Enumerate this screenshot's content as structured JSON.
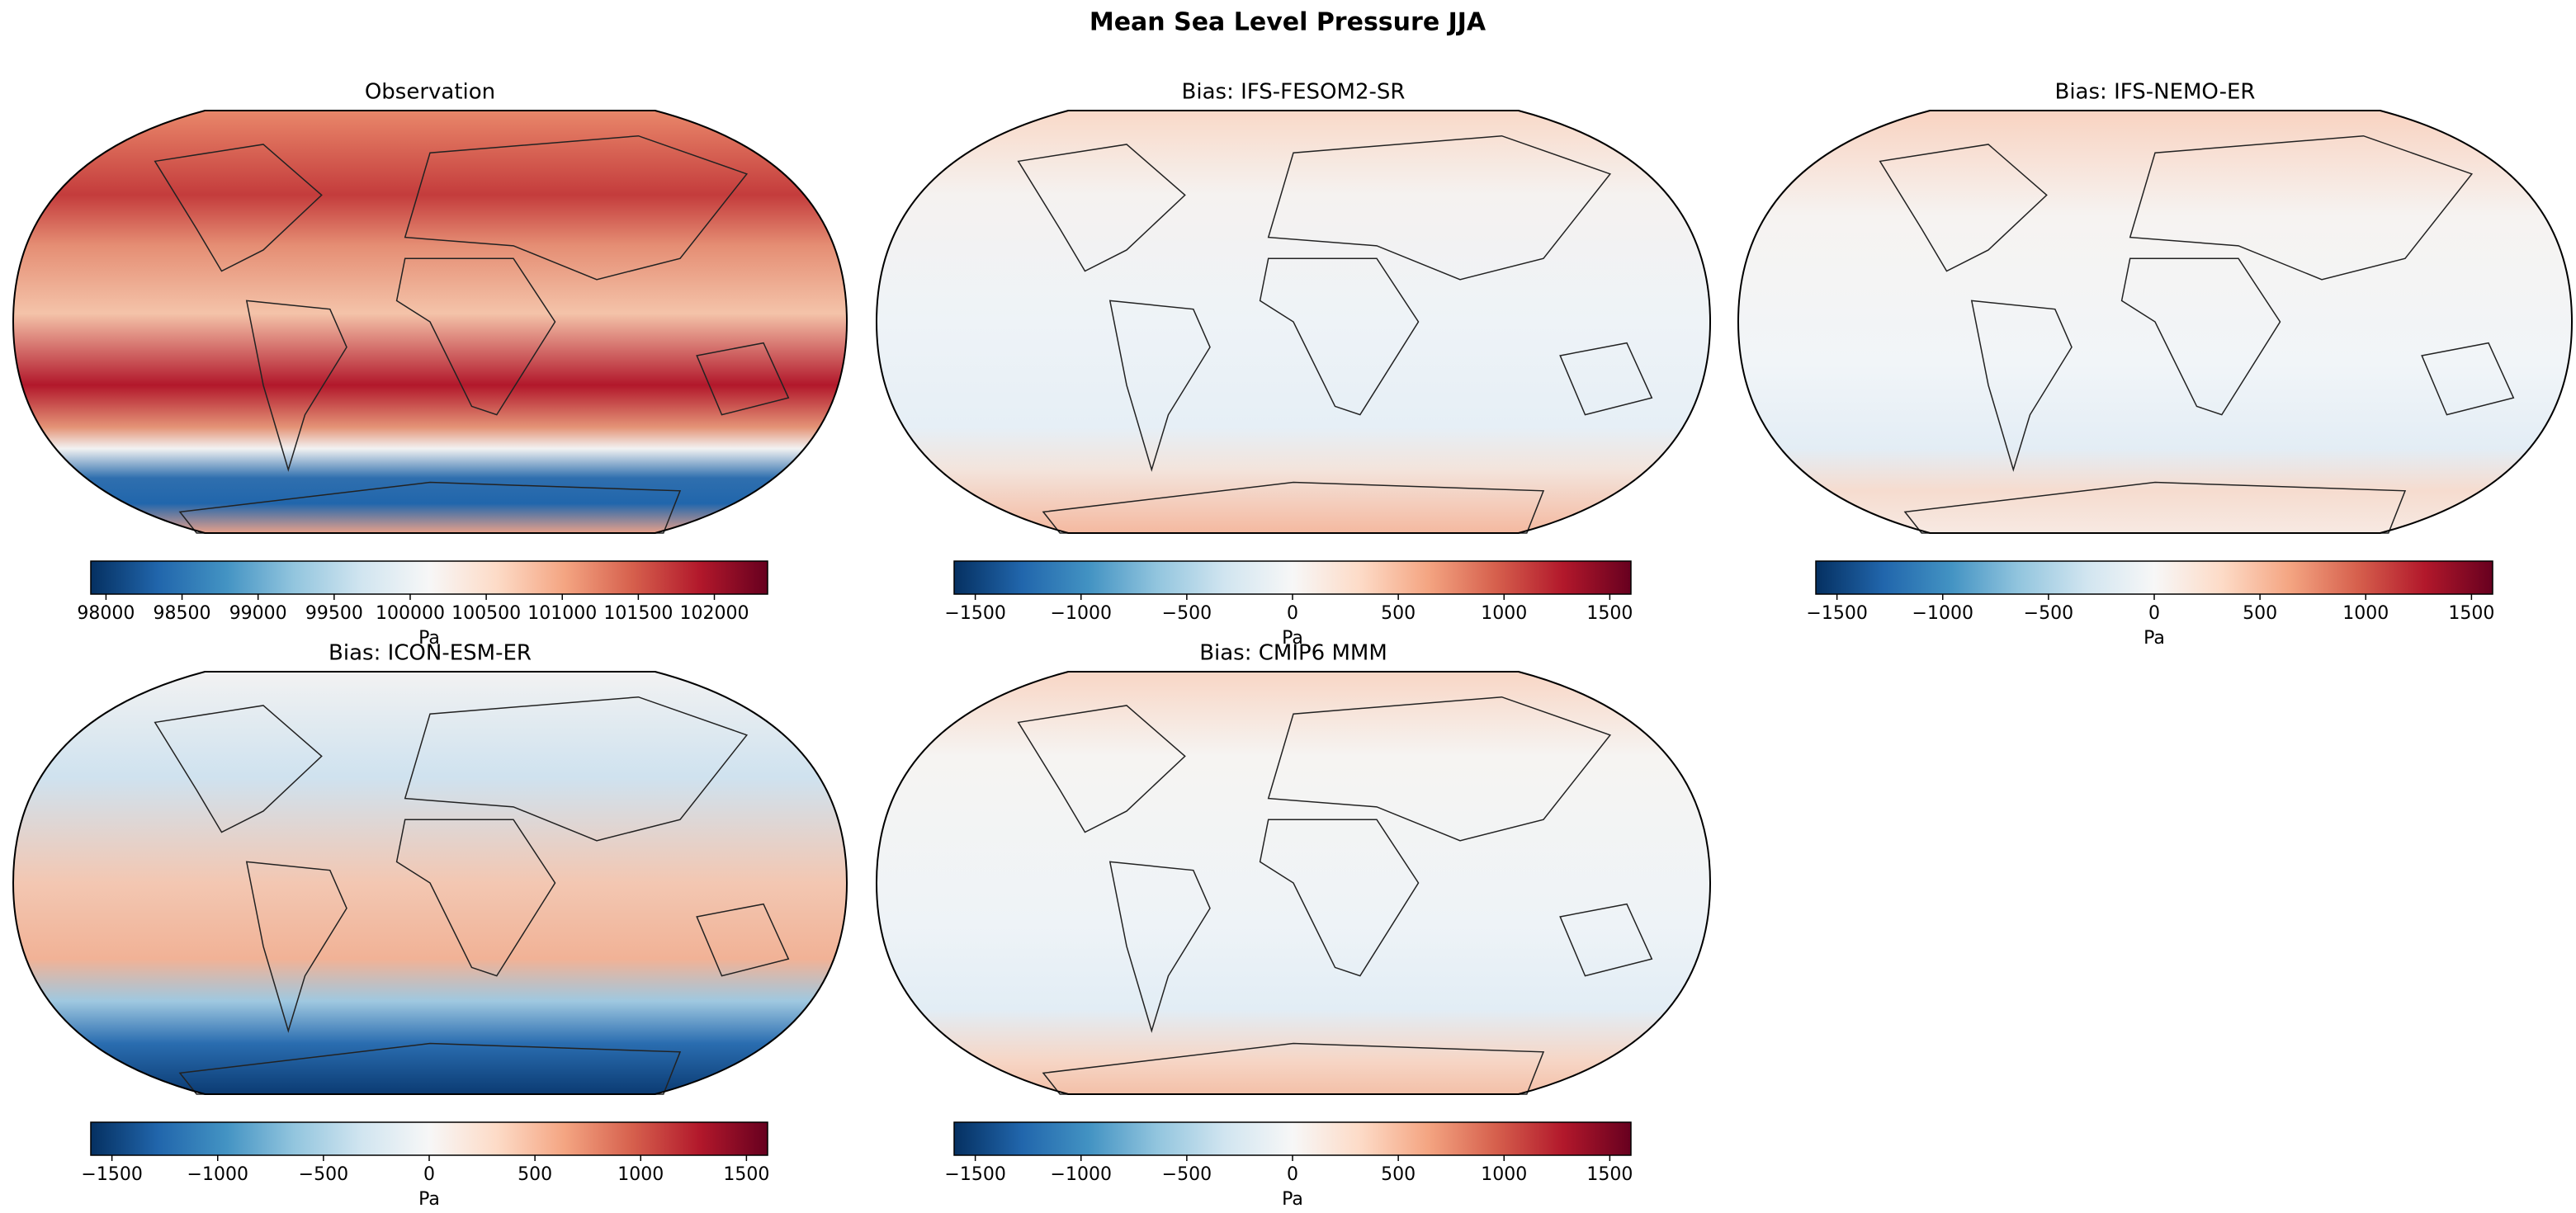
{
  "title": "Mean Sea Level Pressure JJA",
  "panels": [
    {
      "title": "Observation",
      "colorbar": {
        "lim": [
          97900,
          102350
        ],
        "ticks": [
          98000,
          98500,
          99000,
          99500,
          100000,
          100500,
          101000,
          101500,
          102000
        ],
        "label": "Pa"
      }
    },
    {
      "title": "Bias: IFS-FESOM2-SR",
      "colorbar": {
        "lim": [
          -1600,
          1600
        ],
        "ticks": [
          {
            "value": -1500,
            "label": "−1500"
          },
          {
            "value": -1000,
            "label": "−1000"
          },
          {
            "value": -500,
            "label": "−500"
          },
          0,
          500,
          1000,
          1500
        ],
        "label": "Pa"
      }
    },
    {
      "title": "Bias: IFS-NEMO-ER",
      "colorbar": {
        "lim": [
          -1600,
          1600
        ],
        "ticks": [
          {
            "value": -1500,
            "label": "−1500"
          },
          {
            "value": -1000,
            "label": "−1000"
          },
          {
            "value": -500,
            "label": "−500"
          },
          0,
          500,
          1000,
          1500
        ],
        "label": "Pa"
      }
    },
    {
      "title": "Bias: ICON-ESM-ER",
      "colorbar": {
        "lim": [
          -1600,
          1600
        ],
        "ticks": [
          {
            "value": -1500,
            "label": "−1500"
          },
          {
            "value": -1000,
            "label": "−1000"
          },
          {
            "value": -500,
            "label": "−500"
          },
          0,
          500,
          1000,
          1500
        ],
        "label": "Pa"
      }
    },
    {
      "title": "Bias: CMIP6 MMM",
      "colorbar": {
        "lim": [
          -1600,
          1600
        ],
        "ticks": [
          {
            "value": -1500,
            "label": "−1500"
          },
          {
            "value": -1000,
            "label": "−1000"
          },
          {
            "value": -500,
            "label": "−500"
          },
          0,
          500,
          1000,
          1500
        ],
        "label": "Pa"
      }
    }
  ]
}
